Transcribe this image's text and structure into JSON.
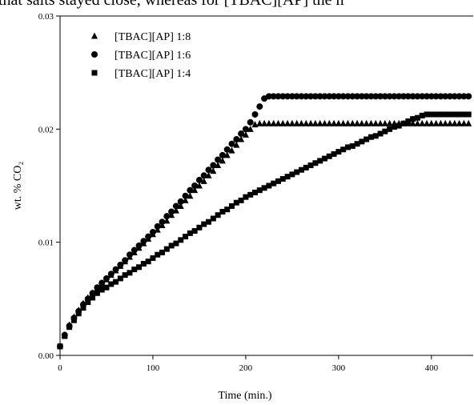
{
  "caption": "that salts stayed close, whereas for [TBAC][AP] the h",
  "chart_data": {
    "type": "scatter",
    "xlabel": "Time (min.)",
    "ylabel": "wt. % CO₂",
    "xlim": [
      0,
      445
    ],
    "ylim": [
      0,
      0.03
    ],
    "xticks": [
      0,
      100,
      200,
      300,
      400
    ],
    "yticks": [
      {
        "value": 0,
        "label": "0.00"
      },
      {
        "value": 0.01,
        "label": "0.01"
      },
      {
        "value": 0.02,
        "label": "0.02"
      },
      {
        "value": 0.03,
        "label": "0.03"
      }
    ],
    "legend": "upper left",
    "x": [
      0,
      5,
      10,
      15,
      20,
      25,
      30,
      35,
      40,
      45,
      50,
      55,
      60,
      65,
      70,
      75,
      80,
      85,
      90,
      95,
      100,
      105,
      110,
      115,
      120,
      125,
      130,
      135,
      140,
      145,
      150,
      155,
      160,
      165,
      170,
      175,
      180,
      185,
      190,
      195,
      200,
      205,
      210,
      215,
      220,
      225,
      230,
      235,
      240,
      245,
      250,
      255,
      260,
      265,
      270,
      275,
      280,
      285,
      290,
      295,
      300,
      305,
      310,
      315,
      320,
      325,
      330,
      335,
      340,
      345,
      350,
      355,
      360,
      365,
      370,
      375,
      380,
      385,
      390,
      395,
      400,
      405,
      410,
      415,
      420,
      425,
      430,
      435,
      440
    ],
    "series": [
      {
        "name": "[TBAC][AP] 1:8",
        "marker": "triangle",
        "color": "#000000",
        "values": [
          0.0008,
          0.0018,
          0.0027,
          0.0034,
          0.004,
          0.0046,
          0.0051,
          0.0055,
          0.0059,
          0.0063,
          0.0067,
          0.0071,
          0.0075,
          0.0079,
          0.0083,
          0.0087,
          0.0091,
          0.0095,
          0.0099,
          0.0103,
          0.0107,
          0.0111,
          0.0115,
          0.0119,
          0.0124,
          0.0128,
          0.0132,
          0.0137,
          0.0141,
          0.0146,
          0.015,
          0.0154,
          0.0159,
          0.0163,
          0.0168,
          0.0172,
          0.0177,
          0.0181,
          0.0186,
          0.0191,
          0.0195,
          0.02,
          0.0204,
          0.0205,
          0.0205,
          0.0205,
          0.0205,
          0.0205,
          0.0205,
          0.0205,
          0.0205,
          0.0205,
          0.0205,
          0.0205,
          0.0205,
          0.0205,
          0.0205,
          0.0205,
          0.0205,
          0.0205,
          0.0205,
          0.0205,
          0.0205,
          0.0205,
          0.0205,
          0.0205,
          0.0205,
          0.0205,
          0.0205,
          0.0205,
          0.0205,
          0.0205,
          0.0205,
          0.0205,
          0.0205,
          0.0205,
          0.0205,
          0.0205,
          0.0205,
          0.0205,
          0.0205,
          0.0205,
          0.0205,
          0.0205,
          0.0205,
          0.0205,
          0.0205,
          0.0205,
          0.0205
        ]
      },
      {
        "name": "[TBAC][AP] 1:6",
        "marker": "circle",
        "color": "#000000",
        "values": [
          0.0008,
          0.0018,
          0.0026,
          0.0033,
          0.0039,
          0.0045,
          0.005,
          0.0055,
          0.006,
          0.0064,
          0.0068,
          0.0072,
          0.0076,
          0.008,
          0.0084,
          0.0089,
          0.0093,
          0.0097,
          0.0101,
          0.0105,
          0.0109,
          0.0114,
          0.0118,
          0.0123,
          0.0127,
          0.0132,
          0.0136,
          0.0141,
          0.0146,
          0.015,
          0.0155,
          0.0159,
          0.0164,
          0.0168,
          0.0173,
          0.0177,
          0.0182,
          0.0187,
          0.0191,
          0.0196,
          0.02,
          0.0206,
          0.0213,
          0.022,
          0.0227,
          0.0229,
          0.0229,
          0.0229,
          0.0229,
          0.0229,
          0.0229,
          0.0229,
          0.0229,
          0.0229,
          0.0229,
          0.0229,
          0.0229,
          0.0229,
          0.0229,
          0.0229,
          0.0229,
          0.0229,
          0.0229,
          0.0229,
          0.0229,
          0.0229,
          0.0229,
          0.0229,
          0.0229,
          0.0229,
          0.0229,
          0.0229,
          0.0229,
          0.0229,
          0.0229,
          0.0229,
          0.0229,
          0.0229,
          0.0229,
          0.0229,
          0.0229,
          0.0229,
          0.0229,
          0.0229,
          0.0229,
          0.0229,
          0.0229,
          0.0229,
          0.0229
        ]
      },
      {
        "name": "[TBAC][AP] 1:4",
        "marker": "square",
        "color": "#000000",
        "values": [
          0.0008,
          0.0017,
          0.0025,
          0.0031,
          0.0037,
          0.0042,
          0.0047,
          0.0051,
          0.0055,
          0.0058,
          0.006,
          0.0063,
          0.0065,
          0.0068,
          0.0071,
          0.0073,
          0.0076,
          0.0078,
          0.0081,
          0.0083,
          0.0086,
          0.0089,
          0.0091,
          0.0094,
          0.0097,
          0.0099,
          0.0102,
          0.0105,
          0.0108,
          0.011,
          0.0113,
          0.0116,
          0.0118,
          0.0121,
          0.0124,
          0.0127,
          0.0129,
          0.0132,
          0.0135,
          0.0137,
          0.014,
          0.0142,
          0.0144,
          0.0146,
          0.0148,
          0.015,
          0.0152,
          0.0154,
          0.0156,
          0.0158,
          0.016,
          0.0162,
          0.0164,
          0.0166,
          0.0168,
          0.017,
          0.0172,
          0.0174,
          0.0176,
          0.0178,
          0.018,
          0.0182,
          0.0184,
          0.0185,
          0.0187,
          0.0189,
          0.0191,
          0.0193,
          0.0194,
          0.0196,
          0.0198,
          0.02,
          0.0202,
          0.0203,
          0.0205,
          0.0207,
          0.0209,
          0.021,
          0.0212,
          0.0213,
          0.0213,
          0.0213,
          0.0213,
          0.0213,
          0.0213,
          0.0213,
          0.0213,
          0.0213,
          0.0213
        ]
      }
    ]
  }
}
